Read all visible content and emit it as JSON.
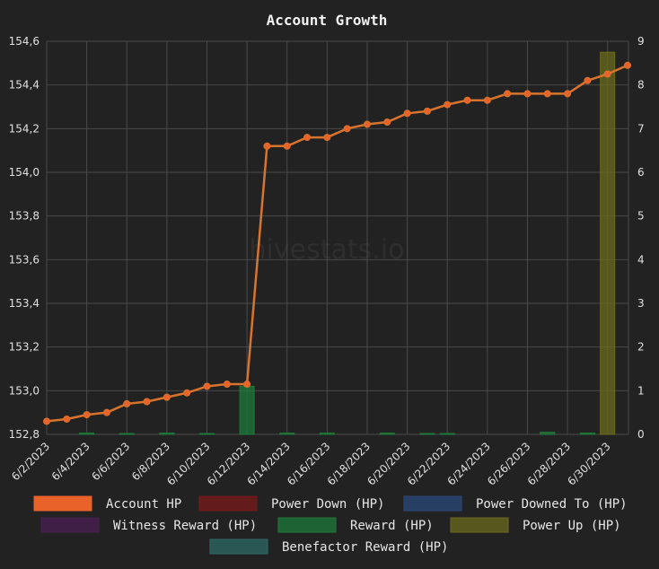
{
  "chart_data": {
    "type": "bar",
    "title": "Account Growth",
    "watermark": "hivestats.io",
    "x": [
      "6/2/2023",
      "6/3/2023",
      "6/4/2023",
      "6/5/2023",
      "6/6/2023",
      "6/7/2023",
      "6/8/2023",
      "6/9/2023",
      "6/10/2023",
      "6/11/2023",
      "6/12/2023",
      "6/13/2023",
      "6/14/2023",
      "6/15/2023",
      "6/16/2023",
      "6/17/2023",
      "6/18/2023",
      "6/19/2023",
      "6/20/2023",
      "6/21/2023",
      "6/22/2023",
      "6/23/2023",
      "6/24/2023",
      "6/25/2023",
      "6/26/2023",
      "6/27/2023",
      "6/28/2023",
      "6/29/2023",
      "6/30/2023",
      "7/1/2023"
    ],
    "x_tick_labels": [
      "6/2/2023",
      "6/4/2023",
      "6/6/2023",
      "6/8/2023",
      "6/10/2023",
      "6/12/2023",
      "6/14/2023",
      "6/16/2023",
      "6/18/2023",
      "6/20/2023",
      "6/22/2023",
      "6/24/2023",
      "6/26/2023",
      "6/28/2023",
      "6/30/2023"
    ],
    "y_left": {
      "min": 152.8,
      "max": 154.6,
      "ticks": [
        "152,8",
        "153,0",
        "153,2",
        "153,4",
        "153,6",
        "153,8",
        "154,0",
        "154,2",
        "154,4",
        "154,6"
      ]
    },
    "y_right": {
      "min": 0,
      "max": 9,
      "ticks": [
        "0",
        "1",
        "2",
        "3",
        "4",
        "5",
        "6",
        "7",
        "8",
        "9"
      ]
    },
    "grid": true,
    "legend_position": "bottom",
    "series": [
      {
        "name": "Account HP",
        "kind": "line",
        "axis": "left",
        "color": "#e8622a",
        "values": [
          152.86,
          152.87,
          152.89,
          152.9,
          152.94,
          152.95,
          152.97,
          152.99,
          153.02,
          153.03,
          153.03,
          154.12,
          154.12,
          154.16,
          154.16,
          154.2,
          154.22,
          154.23,
          154.27,
          154.28,
          154.31,
          154.33,
          154.33,
          154.36,
          154.36,
          154.36,
          154.36,
          154.42,
          154.45,
          154.49
        ]
      },
      {
        "name": "Power Down (HP)",
        "kind": "bar",
        "axis": "right",
        "color": "#7a1a1a",
        "values": [
          0,
          0,
          0,
          0,
          0,
          0,
          0,
          0,
          0,
          0,
          0,
          0,
          0,
          0,
          0,
          0,
          0,
          0,
          0,
          0,
          0,
          0,
          0,
          0,
          0,
          0,
          0,
          0,
          0,
          0
        ]
      },
      {
        "name": "Power Downed To (HP)",
        "kind": "bar",
        "axis": "right",
        "color": "#2a4a7a",
        "values": [
          0,
          0,
          0,
          0,
          0,
          0,
          0,
          0,
          0,
          0,
          0,
          0,
          0,
          0,
          0,
          0,
          0,
          0,
          0,
          0,
          0,
          0,
          0,
          0,
          0,
          0,
          0,
          0,
          0,
          0
        ]
      },
      {
        "name": "Witness Reward (HP)",
        "kind": "bar",
        "axis": "right",
        "color": "#4a1f52",
        "values": [
          0,
          0,
          0,
          0,
          0,
          0,
          0,
          0,
          0,
          0,
          0,
          0,
          0,
          0,
          0,
          0,
          0,
          0,
          0,
          0,
          0,
          0,
          0,
          0,
          0,
          0,
          0,
          0,
          0,
          0
        ]
      },
      {
        "name": "Reward (HP)",
        "kind": "bar",
        "axis": "right",
        "color": "#1e7a3a",
        "values": [
          0,
          0,
          0.03,
          0,
          0.02,
          0,
          0.03,
          0,
          0.02,
          0,
          1.1,
          0,
          0.03,
          0,
          0.03,
          0,
          0,
          0.03,
          0,
          0.02,
          0.02,
          0,
          0,
          0,
          0,
          0.05,
          0,
          0.03,
          0,
          0
        ]
      },
      {
        "name": "Power Up (HP)",
        "kind": "bar",
        "axis": "right",
        "color": "#6b6b1e",
        "values": [
          0,
          0,
          0,
          0,
          0,
          0,
          0,
          0,
          0,
          0,
          0,
          0,
          0,
          0,
          0,
          0,
          0,
          0,
          0,
          0,
          0,
          0,
          0,
          0,
          0,
          0,
          0,
          0,
          8.75,
          0
        ]
      },
      {
        "name": "Benefactor Reward (HP)",
        "kind": "bar",
        "axis": "right",
        "color": "#2e6a64",
        "values": [
          0,
          0,
          0,
          0,
          0,
          0,
          0,
          0,
          0,
          0,
          0,
          0,
          0,
          0,
          0,
          0,
          0,
          0,
          0,
          0,
          0,
          0,
          0,
          0,
          0,
          0,
          0,
          0,
          0,
          0
        ]
      }
    ]
  }
}
